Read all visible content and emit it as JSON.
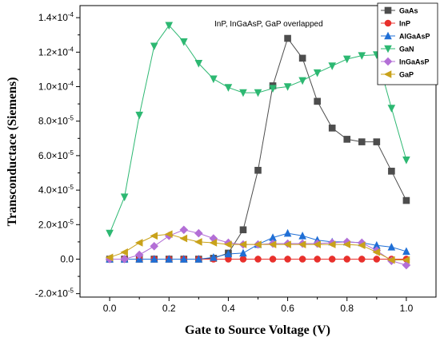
{
  "chart_data": {
    "type": "line",
    "title": "",
    "xlabel": "Gate to Source Voltage (V)",
    "ylabel": "Transconductace (Siemens)",
    "annotation": "InP, InGaAsP, GaP overlapped",
    "xlim": [
      -0.1,
      1.1
    ],
    "ylim": [
      -2.2e-05,
      0.000147
    ],
    "grid": false,
    "legend_position": "top-right",
    "x_ticks": [
      0.0,
      0.2,
      0.4,
      0.6,
      0.8,
      1.0
    ],
    "x_tick_labels": [
      "0.0",
      "0.2",
      "0.4",
      "0.6",
      "0.8",
      "1.0"
    ],
    "y_ticks": [
      -2e-05,
      0,
      2e-05,
      4e-05,
      6e-05,
      8e-05,
      0.0001,
      0.00012,
      0.00014
    ],
    "y_tick_labels": [
      {
        "mant": "-2.0×10",
        "exp": "-5"
      },
      {
        "mant": "0.0",
        "exp": ""
      },
      {
        "mant": "2.0×10",
        "exp": "-5"
      },
      {
        "mant": "4.0×10",
        "exp": "-5"
      },
      {
        "mant": "6.0×10",
        "exp": "-5"
      },
      {
        "mant": "8.0×10",
        "exp": "-5"
      },
      {
        "mant": "1.0×10",
        "exp": "-4"
      },
      {
        "mant": "1.2×10",
        "exp": "-4"
      },
      {
        "mant": "1.4×10",
        "exp": "-4"
      }
    ],
    "x": [
      0.0,
      0.05,
      0.1,
      0.15,
      0.2,
      0.25,
      0.3,
      0.35,
      0.4,
      0.45,
      0.5,
      0.55,
      0.6,
      0.65,
      0.7,
      0.75,
      0.8,
      0.85,
      0.9,
      0.95,
      1.0
    ],
    "series": [
      {
        "name": "GaAs",
        "color": "#4d4d4d",
        "marker": "square",
        "values": [
          0,
          0,
          0,
          0,
          0,
          0,
          0,
          5e-07,
          3.5e-06,
          1.7e-05,
          5.15e-05,
          0.0001005,
          0.000128,
          0.0001165,
          9.15e-05,
          7.6e-05,
          6.95e-05,
          6.8e-05,
          6.8e-05,
          5.1e-05,
          3.4e-05
        ]
      },
      {
        "name": "InP",
        "color": "#e8302c",
        "marker": "circle",
        "values": [
          0,
          0,
          0,
          0,
          0,
          0,
          0,
          0,
          0,
          0,
          0,
          0,
          0,
          0,
          0,
          0,
          0,
          0,
          0,
          0,
          0
        ]
      },
      {
        "name": "AlGaAsP",
        "color": "#1f6fd6",
        "marker": "triangle-up",
        "values": [
          0,
          0,
          0,
          0,
          0,
          0,
          0,
          1e-06,
          3e-06,
          3.5e-06,
          8.5e-06,
          1.25e-05,
          1.5e-05,
          1.35e-05,
          1.1e-05,
          1e-05,
          1e-05,
          9.5e-06,
          8e-06,
          7e-06,
          4.5e-06
        ]
      },
      {
        "name": "GaN",
        "color": "#2db872",
        "marker": "triangle-down",
        "values": [
          1.5e-05,
          3.6e-05,
          8.35e-05,
          0.0001235,
          0.0001355,
          0.000126,
          0.0001135,
          0.0001045,
          9.95e-05,
          9.65e-05,
          9.65e-05,
          9.9e-05,
          0.0001,
          0.0001035,
          0.000108,
          0.000112,
          0.000116,
          0.000118,
          0.0001185,
          8.75e-05,
          5.75e-05
        ]
      },
      {
        "name": "InGaAsP",
        "color": "#b36fd6",
        "marker": "diamond",
        "values": [
          0,
          0,
          2.5e-06,
          7.5e-06,
          1.35e-05,
          1.7e-05,
          1.5e-05,
          1.2e-05,
          9.5e-06,
          8.5e-06,
          8.5e-06,
          9e-06,
          9e-06,
          9e-06,
          9e-06,
          9.5e-06,
          1e-05,
          9.5e-06,
          5e-06,
          -1e-06,
          -3.5e-06
        ]
      },
      {
        "name": "GaP",
        "color": "#c9a21a",
        "marker": "triangle-left",
        "values": [
          1e-06,
          4e-06,
          9.5e-06,
          1.35e-05,
          1.45e-05,
          1.2e-05,
          1e-05,
          9.5e-06,
          8.5e-06,
          8.5e-06,
          8.5e-06,
          8.5e-06,
          8.5e-06,
          8.5e-06,
          8.5e-06,
          8.5e-06,
          8.5e-06,
          8e-06,
          4e-06,
          -5e-07,
          -5e-07
        ]
      }
    ]
  }
}
